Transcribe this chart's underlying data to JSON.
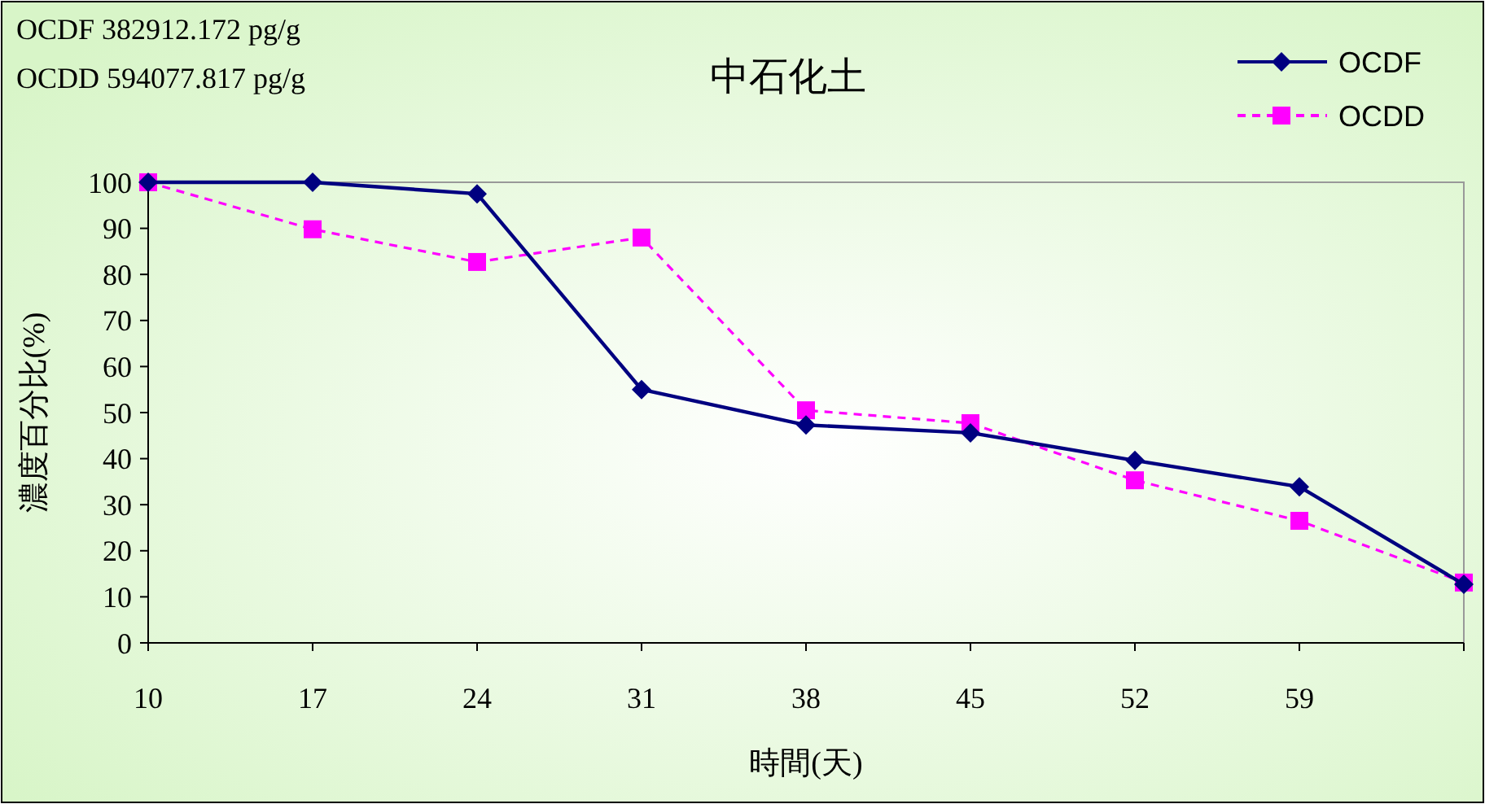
{
  "chart_data": {
    "type": "line",
    "title": "中石化土",
    "xlabel": "時間(天)",
    "ylabel": "濃度百分比(%)",
    "annotations": [
      "OCDF 382912.172 pg/g",
      "OCDD 594077.817 pg/g"
    ],
    "categories": [
      "10",
      "17",
      "24",
      "31",
      "38",
      "45",
      "52",
      "59",
      null
    ],
    "ylim": [
      0,
      100
    ],
    "yticks": [
      0,
      10,
      20,
      30,
      40,
      50,
      60,
      70,
      80,
      90,
      100
    ],
    "grid": false,
    "legend": "top right",
    "series": [
      {
        "name": "OCDF",
        "color": "#000080",
        "marker": "diamond",
        "line_style": "solid",
        "values": [
          100,
          100,
          97.5,
          55,
          47.3,
          45.6,
          39.6,
          33.9,
          12.7
        ]
      },
      {
        "name": "OCDD",
        "color": "#ff00ff",
        "marker": "square",
        "line_style": "dashed",
        "values": [
          100,
          89.8,
          82.7,
          88,
          50.5,
          47.7,
          35.3,
          26.5,
          13.1
        ]
      }
    ]
  }
}
